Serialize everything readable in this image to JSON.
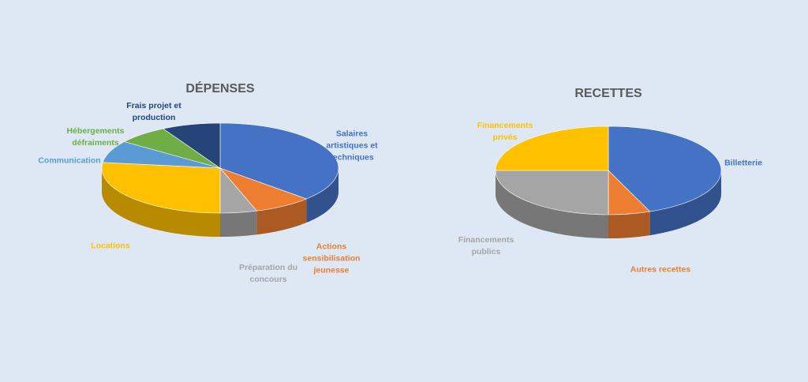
{
  "chart_data": [
    {
      "type": "pie",
      "title": "DÉPENSES",
      "categories": [
        "Salaires artistiques et techniques",
        "Actions sensibilisation jeunesse",
        "Préparation du concours",
        "Locations",
        "Communication",
        "Hébergements défraiments",
        "Frais projet et production"
      ],
      "values": [
        37,
        8,
        5,
        27,
        8,
        7,
        8
      ],
      "colors": [
        "#4472c4",
        "#ed7d31",
        "#a5a5a5",
        "#ffc000",
        "#5b9bd5",
        "#70ad47",
        "#264478"
      ]
    },
    {
      "type": "pie",
      "title": "RECETTES",
      "categories": [
        "Billetterie",
        "Autres recettes",
        "Financements publics",
        "Financements privés"
      ],
      "values": [
        44,
        6,
        25,
        25
      ],
      "colors": [
        "#4472c4",
        "#ed7d31",
        "#a5a5a5",
        "#ffc000"
      ]
    }
  ]
}
